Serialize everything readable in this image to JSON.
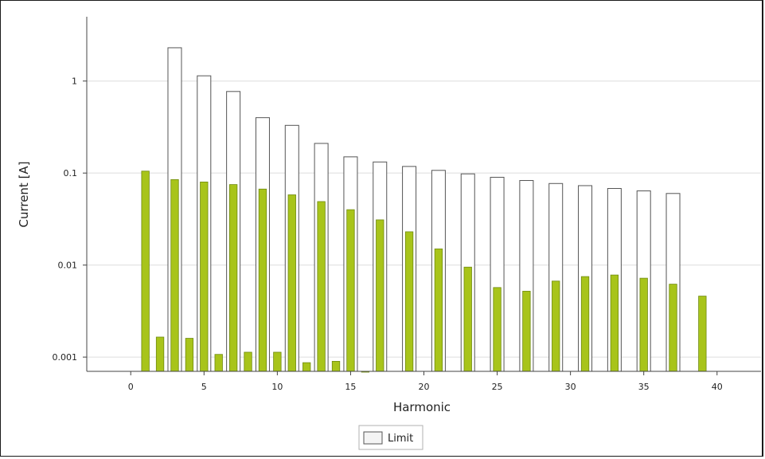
{
  "chart_data": {
    "type": "bar",
    "title": "",
    "xlabel": "Harmonic",
    "ylabel": "Current [A]",
    "y_scale": "log",
    "xlim": [
      -3,
      43
    ],
    "ylim": [
      0.0007,
      5
    ],
    "x_ticks": [
      0,
      5,
      10,
      15,
      20,
      25,
      30,
      35,
      40
    ],
    "x_tick_labels": [
      "0",
      "5",
      "10",
      "15",
      "20",
      "25",
      "30",
      "35",
      "40"
    ],
    "y_ticks": [
      0.001,
      0.01,
      0.1,
      1
    ],
    "y_tick_labels": [
      "0.001",
      "0.01",
      "0.1",
      "1"
    ],
    "grid": "horizontal",
    "legend_position": "bottom-center",
    "colors": {
      "measured": "#a8c41a",
      "measured_edge": "#6f8a0f",
      "limit_fill": "#ffffff",
      "limit_edge": "#555555",
      "grid": "#dddddd"
    },
    "series": [
      {
        "name": "",
        "style": "filled",
        "x": [
          1,
          2,
          3,
          4,
          5,
          6,
          7,
          8,
          9,
          10,
          11,
          12,
          13,
          14,
          15,
          16,
          17,
          19,
          21,
          23,
          25,
          27,
          29,
          31,
          33,
          35,
          37,
          39
        ],
        "values": [
          0.105,
          0.00165,
          0.085,
          0.0016,
          0.08,
          0.00107,
          0.075,
          0.00113,
          0.067,
          0.00113,
          0.058,
          0.00087,
          0.049,
          0.0009,
          0.04,
          0.0007,
          0.031,
          0.023,
          0.015,
          0.0095,
          0.0057,
          0.0052,
          0.0067,
          0.0075,
          0.0078,
          0.0072,
          0.0062,
          0.0046
        ]
      },
      {
        "name": "Limit",
        "style": "outline",
        "x": [
          3,
          5,
          7,
          9,
          11,
          13,
          15,
          17,
          19,
          21,
          23,
          25,
          27,
          29,
          31,
          33,
          35,
          37
        ],
        "values": [
          2.3,
          1.14,
          0.77,
          0.4,
          0.33,
          0.21,
          0.15,
          0.132,
          0.118,
          0.107,
          0.098,
          0.09,
          0.083,
          0.077,
          0.073,
          0.068,
          0.064,
          0.06
        ]
      }
    ]
  }
}
